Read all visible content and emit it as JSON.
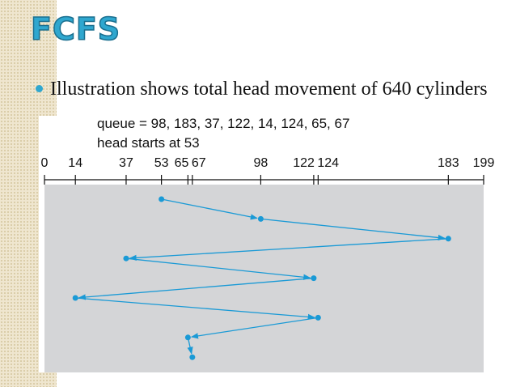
{
  "slide": {
    "title": "FCFS",
    "bullet": "Illustration shows total head movement of 640 cylinders"
  },
  "figure": {
    "queue_label": "queue = 98, 183, 37, 122, 14, 124, 65, 67",
    "head_label": "head starts at 53",
    "xlim": [
      0,
      199
    ],
    "xticks": [
      0,
      14,
      37,
      53,
      65,
      67,
      98,
      122,
      124,
      183,
      199
    ],
    "path": [
      53,
      98,
      183,
      37,
      122,
      14,
      124,
      65,
      67
    ],
    "color": "#1a9ad6"
  }
}
